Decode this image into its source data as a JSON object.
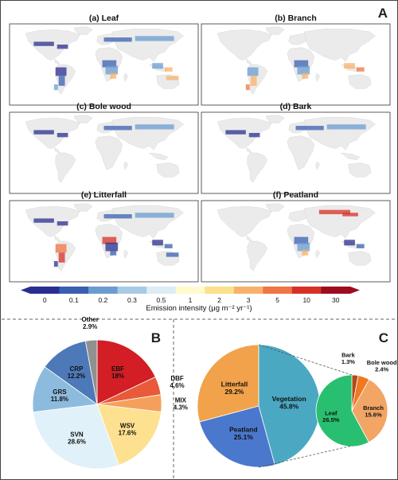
{
  "panel_letters": {
    "a": "A",
    "b": "B",
    "c": "C"
  },
  "maps": [
    {
      "title": "(a) Leaf",
      "hotspots": [
        "south-america",
        "africa",
        "southeast-asia",
        "australia-north",
        "north-boreal"
      ]
    },
    {
      "title": "(b) Branch",
      "hotspots": [
        "africa",
        "south-america",
        "southeast-asia"
      ]
    },
    {
      "title": "(c) Bole wood",
      "hotspots": [
        "north-boreal"
      ]
    },
    {
      "title": "(d) Bark",
      "hotspots": [
        "north-boreal"
      ]
    },
    {
      "title": "(e) Litterfall",
      "hotspots": [
        "south-america",
        "africa",
        "southeast-asia",
        "australia-north",
        "north-boreal"
      ]
    },
    {
      "title": "(f) Peatland",
      "hotspots": [
        "siberia",
        "southeast-asia",
        "africa"
      ]
    }
  ],
  "colorbar": {
    "ticks": [
      "0",
      "0.1",
      "0.2",
      "0.3",
      "0.5",
      "1",
      "2",
      "3",
      "5",
      "10",
      "30"
    ],
    "colors": [
      "#2a2f8f",
      "#3a5fb0",
      "#6a9cd0",
      "#a7cbe6",
      "#dcedf4",
      "#fffacc",
      "#fde08c",
      "#f8b16b",
      "#ef7446",
      "#d73027",
      "#9e0b1e"
    ],
    "label": "Emission intensity (μg m⁻² yr⁻¹)"
  },
  "pie_b": {
    "slices": [
      {
        "name": "EBF",
        "value": 18.0,
        "label": "18%",
        "color": "#d21e24"
      },
      {
        "name": "DBF",
        "value": 4.6,
        "label": "4.6%",
        "color": "#e85a3a"
      },
      {
        "name": "MIX",
        "value": 4.3,
        "label": "4.3%",
        "color": "#f4a05c"
      },
      {
        "name": "WSV",
        "value": 17.6,
        "label": "17.6%",
        "color": "#fde090"
      },
      {
        "name": "SVN",
        "value": 28.6,
        "label": "28.6%",
        "color": "#e1f1f9"
      },
      {
        "name": "GRS",
        "value": 11.8,
        "label": "11.8%",
        "color": "#8dbbdd"
      },
      {
        "name": "CRP",
        "value": 12.2,
        "label": "12.2%",
        "color": "#4d79b8"
      },
      {
        "name": "Other",
        "value": 2.9,
        "label": "2.9%",
        "color": "#909090"
      }
    ]
  },
  "pie_c_big": {
    "slices": [
      {
        "name": "Vegetation",
        "value": 45.8,
        "label": "45.8%",
        "color": "#4aa8c2"
      },
      {
        "name": "Peatland",
        "value": 25.1,
        "label": "25.1%",
        "color": "#4a78cc"
      },
      {
        "name": "Litterfall",
        "value": 29.2,
        "label": "29.2%",
        "color": "#f1a24a"
      }
    ]
  },
  "pie_c_small": {
    "slices": [
      {
        "name": "Bark",
        "value": 1.3,
        "label": "1.3%",
        "color": "#b04a1a"
      },
      {
        "name": "Bole wood",
        "value": 2.4,
        "label": "2.4%",
        "color": "#f07820"
      },
      {
        "name": "Branch",
        "value": 15.6,
        "label": "15.6%",
        "color": "#f2a564"
      },
      {
        "name": "Leaf",
        "value": 26.5,
        "label": "26.5%",
        "color": "#28c070"
      }
    ]
  }
}
